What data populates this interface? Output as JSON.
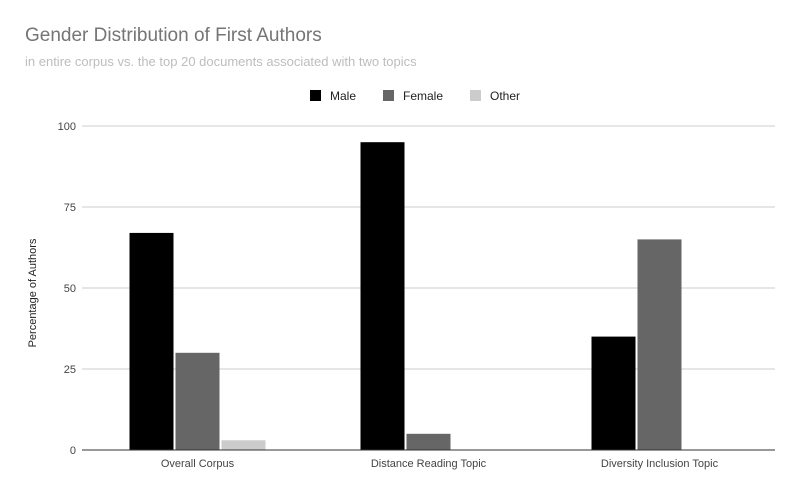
{
  "chart_data": {
    "type": "bar",
    "title": "Gender Distribution of First Authors",
    "subtitle": "in entire corpus vs. the top 20 documents associated with two topics",
    "xlabel": "",
    "ylabel": "Percentage of Authors",
    "categories": [
      "Overall Corpus",
      "Distance Reading Topic",
      "Diversity Inclusion Topic"
    ],
    "series": [
      {
        "name": "Male",
        "color": "#000000",
        "values": [
          67,
          95,
          35
        ]
      },
      {
        "name": "Female",
        "color": "#666666",
        "values": [
          30,
          5,
          65
        ]
      },
      {
        "name": "Other",
        "color": "#cccccc",
        "values": [
          3,
          0,
          0
        ]
      }
    ],
    "ylim": [
      0,
      100
    ],
    "yticks": [
      0,
      25,
      50,
      75,
      100
    ],
    "grid": true,
    "legend_position": "top-center"
  }
}
